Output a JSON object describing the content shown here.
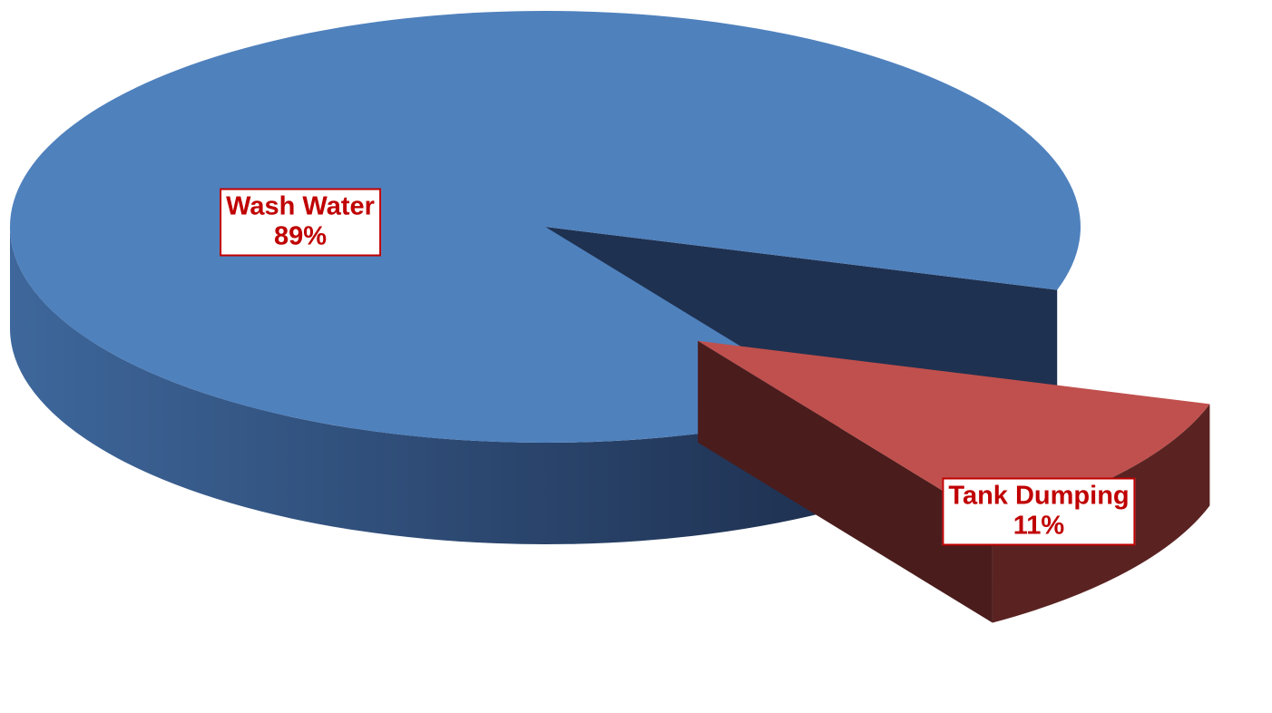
{
  "chart_data": {
    "type": "pie",
    "style": "3d-exploded",
    "title": "",
    "legend": "none",
    "slices": [
      {
        "name": "Wash Water",
        "value": 89,
        "label": "89%",
        "color": "#4f81bd",
        "side_color_dark": "#1f3150",
        "side_color_light": "#3e679b"
      },
      {
        "name": "Tank Dumping",
        "value": 11,
        "label": "11%",
        "color": "#c0504d",
        "side_color_dark": "#4a1c1c",
        "side_color_light": "#5a2322"
      }
    ],
    "label_color": "#c00000"
  }
}
